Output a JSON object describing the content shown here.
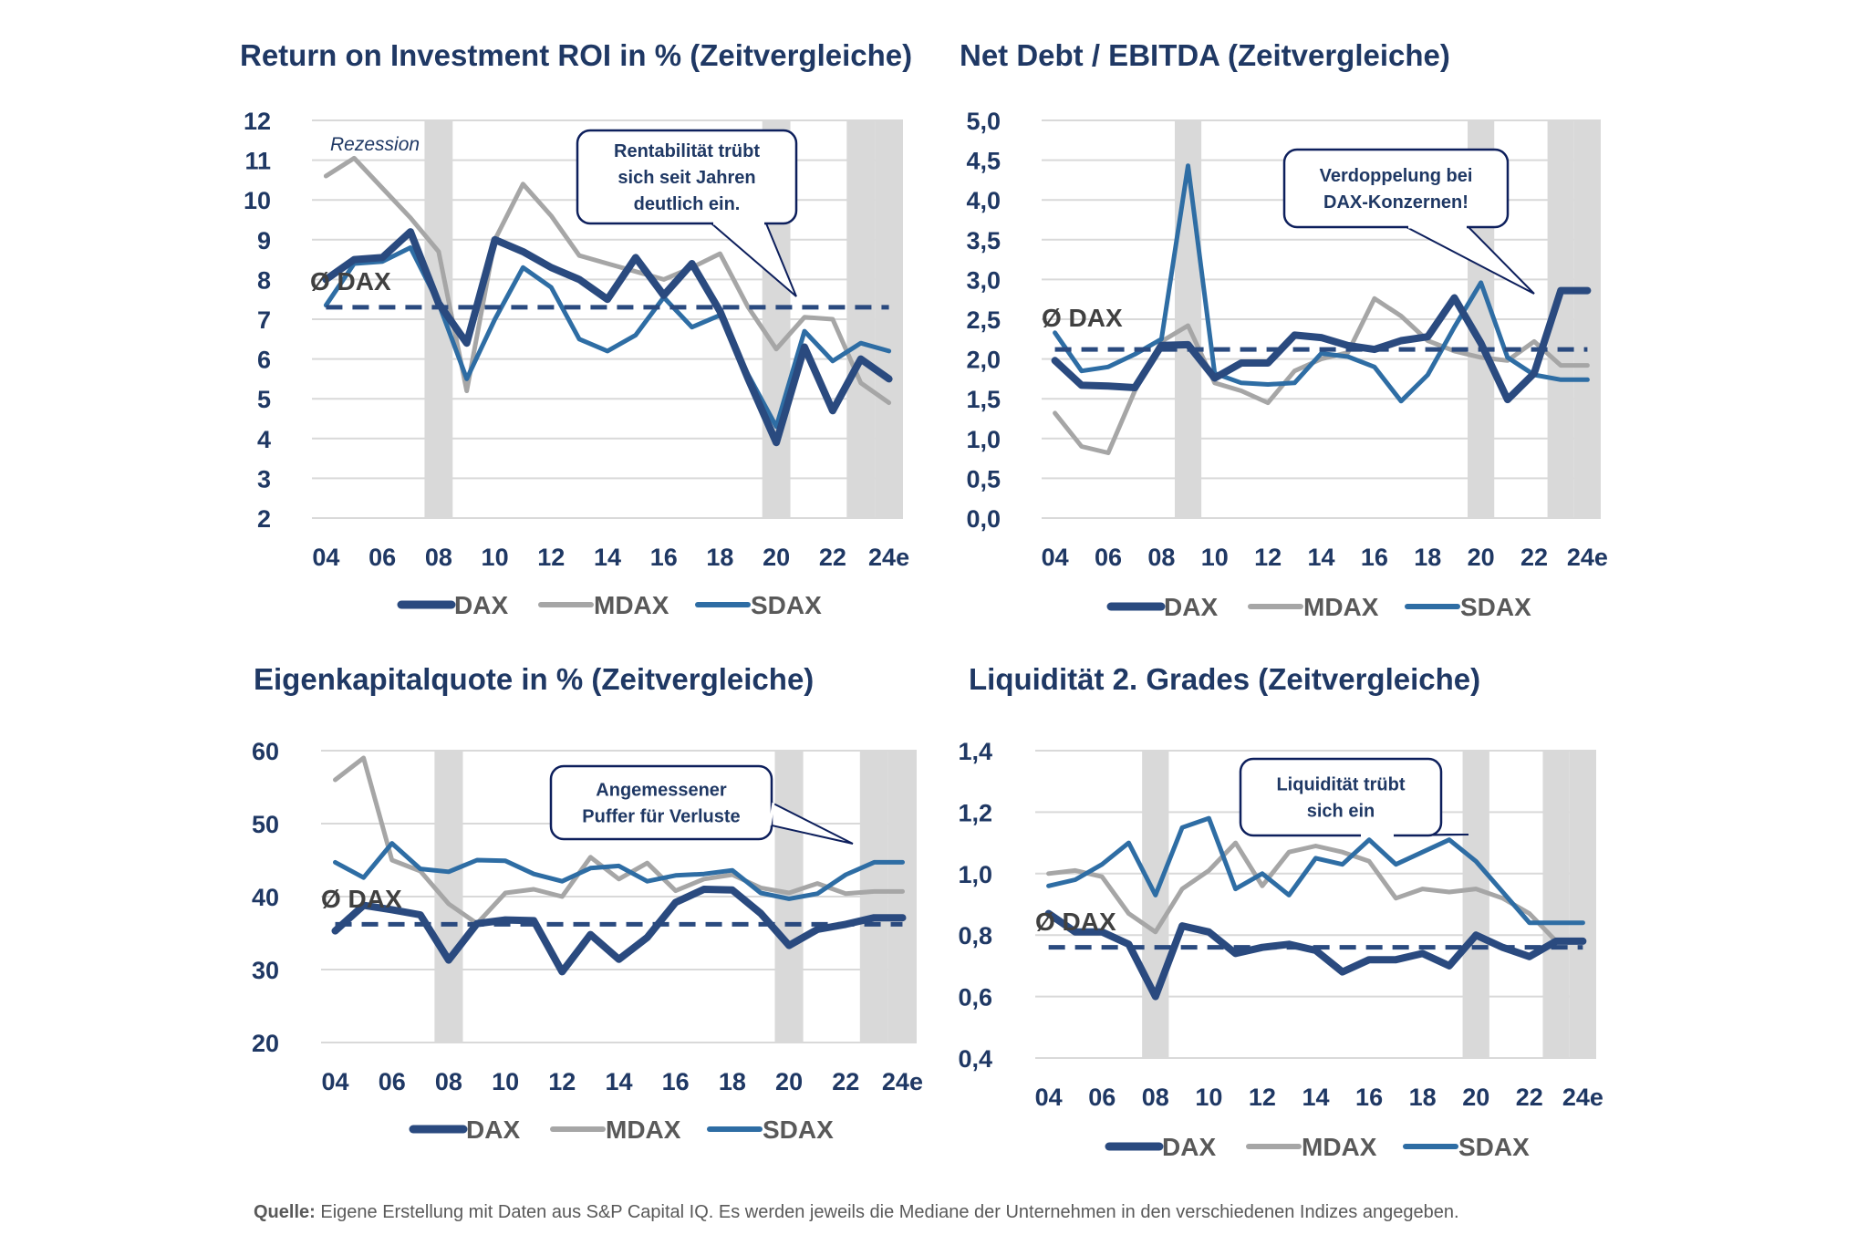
{
  "colors": {
    "dax": "#2a4a7f",
    "mdax": "#a6a6a6",
    "sdax": "#2e6da4",
    "avg": "#2a4a7f",
    "recession": "#d9d9d9",
    "grid": "#d9d9d9",
    "callout_border": "#0d1f5c"
  },
  "footer": {
    "label": "Quelle:",
    "text": "Eigene Erstellung mit Daten aus S&P Capital IQ. Es werden jeweils die Mediane der Unternehmen in den verschiedenen Indizes angegeben."
  },
  "chart_data": [
    {
      "type": "line",
      "title": "Return on Investment ROI in % (Zeitvergleiche)",
      "x": [
        "04",
        "05",
        "06",
        "07",
        "08",
        "09",
        "10",
        "11",
        "12",
        "13",
        "14",
        "15",
        "16",
        "17",
        "18",
        "19",
        "20",
        "21",
        "22",
        "23",
        "24e"
      ],
      "xtick_labels": [
        "04",
        "06",
        "08",
        "10",
        "12",
        "14",
        "16",
        "18",
        "20",
        "22",
        "24e"
      ],
      "ylim": [
        2,
        12
      ],
      "yticks": [
        "2",
        "3",
        "4",
        "5",
        "6",
        "7",
        "8",
        "9",
        "10",
        "11",
        "12"
      ],
      "yticks_values": [
        2,
        3,
        4,
        5,
        6,
        7,
        8,
        9,
        10,
        11,
        12
      ],
      "recession_years": [
        "08",
        "20",
        "23",
        "24e"
      ],
      "recession_label": "Rezession",
      "avg": {
        "label": "Ø DAX",
        "value": 7.3
      },
      "callout": [
        "Rentabilität trübt",
        "sich seit Jahren",
        "deutlich ein."
      ],
      "series": [
        {
          "name": "DAX",
          "values": [
            8.0,
            8.5,
            8.55,
            9.2,
            7.4,
            6.4,
            9.0,
            8.7,
            8.3,
            8.0,
            7.5,
            8.55,
            7.6,
            8.4,
            7.2,
            5.5,
            3.9,
            6.3,
            4.7,
            6.0,
            5.5
          ]
        },
        {
          "name": "MDAX",
          "values": [
            10.6,
            11.05,
            10.3,
            9.55,
            8.7,
            5.2,
            9.0,
            10.4,
            9.6,
            8.6,
            8.4,
            8.2,
            8.0,
            8.3,
            8.65,
            7.3,
            6.25,
            7.05,
            7.0,
            5.4,
            4.9
          ]
        },
        {
          "name": "SDAX",
          "values": [
            7.35,
            8.4,
            8.45,
            8.8,
            7.4,
            5.5,
            7.0,
            8.3,
            7.8,
            6.5,
            6.2,
            6.6,
            7.55,
            6.8,
            7.1,
            5.6,
            4.3,
            6.7,
            5.95,
            6.4,
            6.2
          ]
        }
      ],
      "legend": [
        "DAX",
        "MDAX",
        "SDAX"
      ],
      "legend_position": "bottom"
    },
    {
      "type": "line",
      "title": "Net Debt / EBITDA (Zeitvergleiche)",
      "x": [
        "04",
        "05",
        "06",
        "07",
        "08",
        "09",
        "10",
        "11",
        "12",
        "13",
        "14",
        "15",
        "16",
        "17",
        "18",
        "19",
        "20",
        "21",
        "22",
        "23",
        "24e"
      ],
      "xtick_labels": [
        "04",
        "06",
        "08",
        "10",
        "12",
        "14",
        "16",
        "18",
        "20",
        "22",
        "24e"
      ],
      "ylim": [
        0,
        5
      ],
      "yticks": [
        "0,0",
        "0,5",
        "1,0",
        "1,5",
        "2,0",
        "2,5",
        "3,0",
        "3,5",
        "4,0",
        "4,5",
        "5,0"
      ],
      "yticks_values": [
        0,
        0.5,
        1,
        1.5,
        2,
        2.5,
        3,
        3.5,
        4,
        4.5,
        5
      ],
      "recession_years": [
        "09",
        "20",
        "23",
        "24e"
      ],
      "avg": {
        "label": "Ø DAX",
        "value": 2.12
      },
      "callout": [
        "Verdoppelung bei",
        "DAX-Konzernen!"
      ],
      "series": [
        {
          "name": "DAX",
          "values": [
            1.98,
            1.67,
            1.66,
            1.64,
            2.17,
            2.18,
            1.76,
            1.95,
            1.95,
            2.3,
            2.27,
            2.17,
            2.12,
            2.23,
            2.28,
            2.77,
            2.2,
            1.49,
            1.82,
            2.86,
            2.86
          ]
        },
        {
          "name": "MDAX",
          "values": [
            1.32,
            0.9,
            0.82,
            1.6,
            2.22,
            2.42,
            1.7,
            1.6,
            1.45,
            1.85,
            2.0,
            2.08,
            2.76,
            2.54,
            2.23,
            2.1,
            2.02,
            1.98,
            2.22,
            1.92,
            1.92
          ]
        },
        {
          "name": "SDAX",
          "values": [
            2.33,
            1.85,
            1.9,
            2.06,
            2.25,
            4.43,
            1.82,
            1.7,
            1.68,
            1.7,
            2.07,
            2.03,
            1.9,
            1.47,
            1.8,
            2.4,
            2.96,
            2.02,
            1.8,
            1.74,
            1.74
          ]
        }
      ],
      "legend": [
        "DAX",
        "MDAX",
        "SDAX"
      ],
      "legend_position": "bottom"
    },
    {
      "type": "line",
      "title": "Eigenkapitalquote in % (Zeitvergleiche)",
      "x": [
        "04",
        "05",
        "06",
        "07",
        "08",
        "09",
        "10",
        "11",
        "12",
        "13",
        "14",
        "15",
        "16",
        "17",
        "18",
        "19",
        "20",
        "21",
        "22",
        "23",
        "24e"
      ],
      "xtick_labels": [
        "04",
        "06",
        "08",
        "10",
        "12",
        "14",
        "16",
        "18",
        "20",
        "22",
        "24e"
      ],
      "ylim": [
        20,
        60
      ],
      "yticks": [
        "20",
        "30",
        "40",
        "50",
        "60"
      ],
      "yticks_values": [
        20,
        30,
        40,
        50,
        60
      ],
      "recession_years": [
        "08",
        "20",
        "23",
        "24e"
      ],
      "avg": {
        "label": "Ø DAX",
        "value": 36.2
      },
      "callout": [
        "Angemessener",
        "Puffer für Verluste"
      ],
      "series": [
        {
          "name": "DAX",
          "values": [
            35.3,
            38.8,
            38.2,
            37.5,
            31.3,
            36.3,
            36.8,
            36.7,
            29.7,
            34.8,
            31.4,
            34.4,
            39.2,
            41.0,
            40.9,
            37.7,
            33.3,
            35.5,
            36.2,
            37.1,
            37.1
          ]
        },
        {
          "name": "MDAX",
          "values": [
            56.0,
            59.0,
            45.0,
            43.5,
            39.0,
            36.3,
            40.5,
            41.0,
            40.0,
            45.4,
            42.4,
            44.6,
            40.8,
            42.4,
            43.0,
            41.2,
            40.5,
            41.8,
            40.4,
            40.7,
            40.7
          ]
        },
        {
          "name": "SDAX",
          "values": [
            44.7,
            42.6,
            47.3,
            43.8,
            43.4,
            45.0,
            44.9,
            43.1,
            42.1,
            43.9,
            44.2,
            42.1,
            42.9,
            43.1,
            43.6,
            40.5,
            39.7,
            40.4,
            43.0,
            44.7,
            44.7
          ]
        }
      ],
      "legend": [
        "DAX",
        "MDAX",
        "SDAX"
      ],
      "legend_position": "bottom"
    },
    {
      "type": "line",
      "title": "Liquidität 2. Grades (Zeitvergleiche)",
      "x": [
        "04",
        "05",
        "06",
        "07",
        "08",
        "09",
        "10",
        "11",
        "12",
        "13",
        "14",
        "15",
        "16",
        "17",
        "18",
        "19",
        "20",
        "21",
        "22",
        "23",
        "24e"
      ],
      "xtick_labels": [
        "04",
        "06",
        "08",
        "10",
        "12",
        "14",
        "16",
        "18",
        "20",
        "22",
        "24e"
      ],
      "ylim": [
        0.4,
        1.4
      ],
      "yticks": [
        "0,4",
        "0,6",
        "0,8",
        "1,0",
        "1,2",
        "1,4"
      ],
      "yticks_values": [
        0.4,
        0.6,
        0.8,
        1.0,
        1.2,
        1.4
      ],
      "recession_years": [
        "08",
        "20",
        "23",
        "24e"
      ],
      "avg": {
        "label": "Ø DAX",
        "value": 0.76
      },
      "callout": [
        "Liquidität trübt",
        "sich ein"
      ],
      "series": [
        {
          "name": "DAX",
          "values": [
            0.87,
            0.81,
            0.81,
            0.77,
            0.6,
            0.83,
            0.81,
            0.74,
            0.76,
            0.77,
            0.75,
            0.68,
            0.72,
            0.72,
            0.74,
            0.7,
            0.8,
            0.76,
            0.73,
            0.78,
            0.78
          ]
        },
        {
          "name": "MDAX",
          "values": [
            1.0,
            1.01,
            0.99,
            0.87,
            0.81,
            0.95,
            1.01,
            1.1,
            0.96,
            1.07,
            1.09,
            1.07,
            1.04,
            0.92,
            0.95,
            0.94,
            0.95,
            0.92,
            0.87,
            0.78,
            0.78
          ]
        },
        {
          "name": "SDAX",
          "values": [
            0.96,
            0.98,
            1.03,
            1.1,
            0.93,
            1.15,
            1.18,
            0.95,
            1.0,
            0.93,
            1.05,
            1.03,
            1.11,
            1.03,
            1.07,
            1.11,
            1.04,
            0.94,
            0.84,
            0.84,
            0.84
          ]
        }
      ],
      "legend": [
        "DAX",
        "MDAX",
        "SDAX"
      ],
      "legend_position": "bottom"
    }
  ]
}
